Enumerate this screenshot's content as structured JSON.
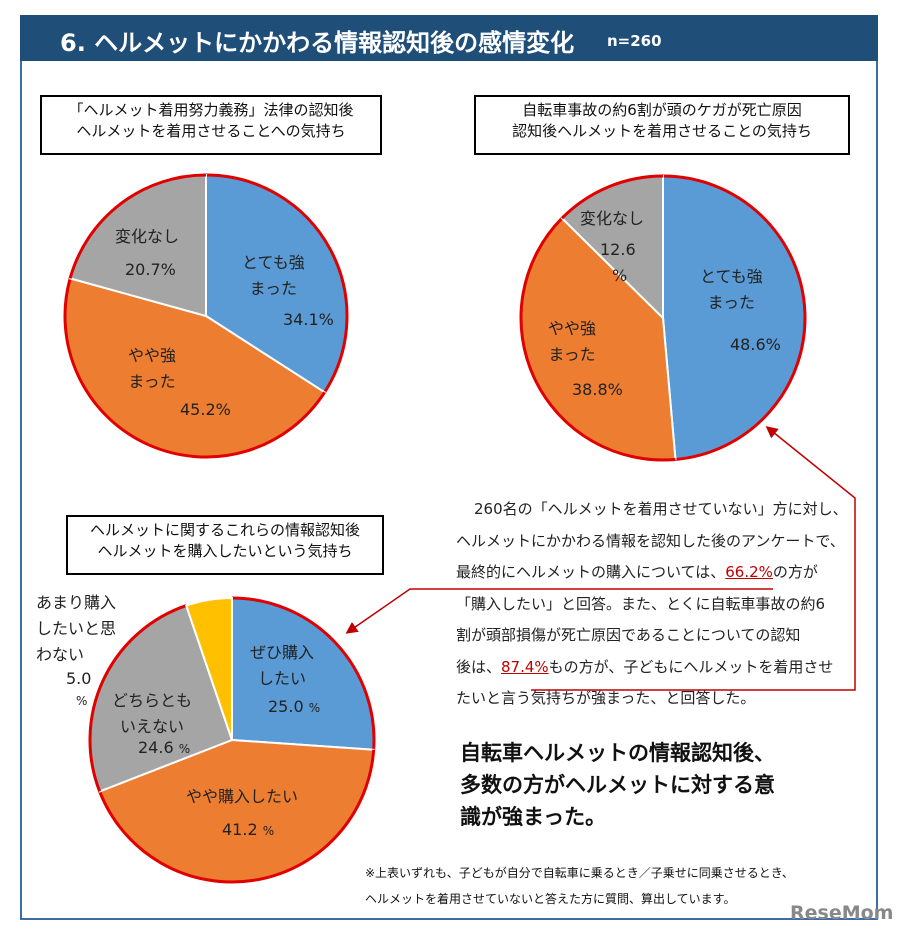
{
  "header": {
    "title": "6. ヘルメットにかかわる情報認知後の感情変化",
    "n": "n=260"
  },
  "colors": {
    "blue": "#5b9bd5",
    "orange": "#ed7d31",
    "gray": "#a5a5a5",
    "yellow": "#ffc000",
    "outline": "#e00000",
    "header": "#1f4e79"
  },
  "chart_data": [
    {
      "type": "pie",
      "title": [
        "「ヘルメット着用努力義務」法律の認知後",
        "ヘルメットを着用させることへの気持ち"
      ],
      "slices": [
        {
          "label": "とても強まった",
          "value": 34.1,
          "color": "#5b9bd5",
          "text": [
            "とても強",
            "まった"
          ],
          "pct": "34.1%"
        },
        {
          "label": "やや強まった",
          "value": 45.2,
          "color": "#ed7d31",
          "text": [
            "やや強",
            "まった"
          ],
          "pct": "45.2%"
        },
        {
          "label": "変化なし",
          "value": 20.7,
          "color": "#a5a5a5",
          "text": [
            "変化なし"
          ],
          "pct": "20.7%"
        }
      ]
    },
    {
      "type": "pie",
      "title": [
        "自転車事故の約6割が頭のケガが死亡原因",
        "認知後ヘルメットを着用させることの気持ち"
      ],
      "slices": [
        {
          "label": "とても強まった",
          "value": 48.6,
          "color": "#5b9bd5",
          "text": [
            "とても強",
            "まった"
          ],
          "pct": "48.6%"
        },
        {
          "label": "やや強まった",
          "value": 38.8,
          "color": "#ed7d31",
          "text": [
            "やや強",
            "まった"
          ],
          "pct": "38.8%"
        },
        {
          "label": "変化なし",
          "value": 12.6,
          "color": "#a5a5a5",
          "text": [
            "変化なし"
          ],
          "pct": "12.6",
          "unit": "%"
        }
      ]
    },
    {
      "type": "pie",
      "title": [
        "ヘルメットに関するこれらの情報認知後",
        "ヘルメットを購入したいという気持ち"
      ],
      "slices": [
        {
          "label": "ぜひ購入したい",
          "value": 25.0,
          "color": "#5b9bd5",
          "text": [
            "ぜひ購入",
            "したい"
          ],
          "pct": "25.0",
          "unit": "%"
        },
        {
          "label": "やや購入したい",
          "value": 41.2,
          "color": "#ed7d31",
          "text": [
            "やや購入したい"
          ],
          "pct": "41.2",
          "unit": "%"
        },
        {
          "label": "どちらともいえない",
          "value": 24.6,
          "color": "#a5a5a5",
          "text": [
            "どちらとも",
            "いえない"
          ],
          "pct": "24.6",
          "unit": "%"
        },
        {
          "label": "あまり購入したいと思わない",
          "value": 5.0,
          "color": "#ffc000",
          "text": [
            "あまり購入",
            "したいと思",
            "わない"
          ],
          "pct": "5.0",
          "unit": "%"
        }
      ]
    }
  ],
  "desc": {
    "l1": "260名の「ヘルメットを着用させていない」方に対し、",
    "l2": "ヘルメットにかかわる情報を認知した後のアンケートで、",
    "l3a": "最終的にヘルメットの購入については、",
    "l3b": "66.2%",
    "l3c": "の方が",
    "l4": "「購入したい」と回答。また、とくに自転車事故の約6",
    "l5": "割が頭部損傷が死亡原因であることについての認知",
    "l6a": "後は、",
    "l6b": "87.4%",
    "l6c": "もの方が、子どもにヘルメットを着用させ",
    "l7": "たいと言う気持ちが強まった、と回答した。"
  },
  "conclusion": [
    "自転車ヘルメットの情報認知後、",
    "多数の方がヘルメットに対する意",
    "識が強まった。"
  ],
  "note": [
    "※上表いずれも、子どもが自分で自転車に乗るとき／子乗せに同乗させるとき、",
    "ヘルメットを着用させていないと答えた方に質問、算出しています。"
  ],
  "logo": "ReseMom"
}
